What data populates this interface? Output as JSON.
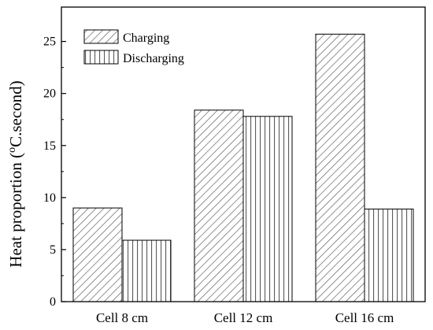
{
  "chart_data": {
    "type": "bar",
    "categories": [
      "Cell 8 cm",
      "Cell 12 cm",
      "Cell 16 cm"
    ],
    "series": [
      {
        "name": "Charging",
        "values": [
          9.0,
          18.4,
          25.7
        ],
        "pattern": "diagonal-hatch"
      },
      {
        "name": "Discharging",
        "values": [
          5.9,
          17.8,
          8.9
        ],
        "pattern": "vertical-hatch"
      }
    ],
    "xlabel": "",
    "ylabel_main": "Heat proportion (",
    "ylabel_sup": "o",
    "ylabel_tail": "C.second)",
    "ylim": [
      0,
      28.3
    ],
    "yticks": [
      0,
      5,
      10,
      15,
      20,
      25
    ],
    "legend_position": "top-left",
    "grid": false
  }
}
